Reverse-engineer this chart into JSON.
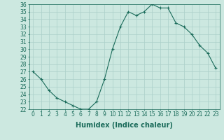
{
  "x": [
    0,
    1,
    2,
    3,
    4,
    5,
    6,
    7,
    8,
    9,
    10,
    11,
    12,
    13,
    14,
    15,
    16,
    17,
    18,
    19,
    20,
    21,
    22,
    23
  ],
  "y": [
    27,
    26,
    24.5,
    23.5,
    23,
    22.5,
    22,
    22,
    23,
    26,
    30,
    33,
    35,
    34.5,
    35,
    36,
    35.5,
    35.5,
    33.5,
    33,
    32,
    30.5,
    29.5,
    27.5
  ],
  "xlabel": "Humidex (Indice chaleur)",
  "ylabel": "",
  "ylim": [
    22,
    36
  ],
  "xlim": [
    -0.5,
    23.5
  ],
  "yticks": [
    22,
    23,
    24,
    25,
    26,
    27,
    28,
    29,
    30,
    31,
    32,
    33,
    34,
    35,
    36
  ],
  "xticks": [
    0,
    1,
    2,
    3,
    4,
    5,
    6,
    7,
    8,
    9,
    10,
    11,
    12,
    13,
    14,
    15,
    16,
    17,
    18,
    19,
    20,
    21,
    22,
    23
  ],
  "line_color": "#1a6b5a",
  "marker": "+",
  "marker_color": "#1a6b5a",
  "bg_color": "#cce8e0",
  "grid_color": "#aacfc8",
  "title": "",
  "xlabel_fontsize": 7,
  "tick_fontsize": 5.5
}
